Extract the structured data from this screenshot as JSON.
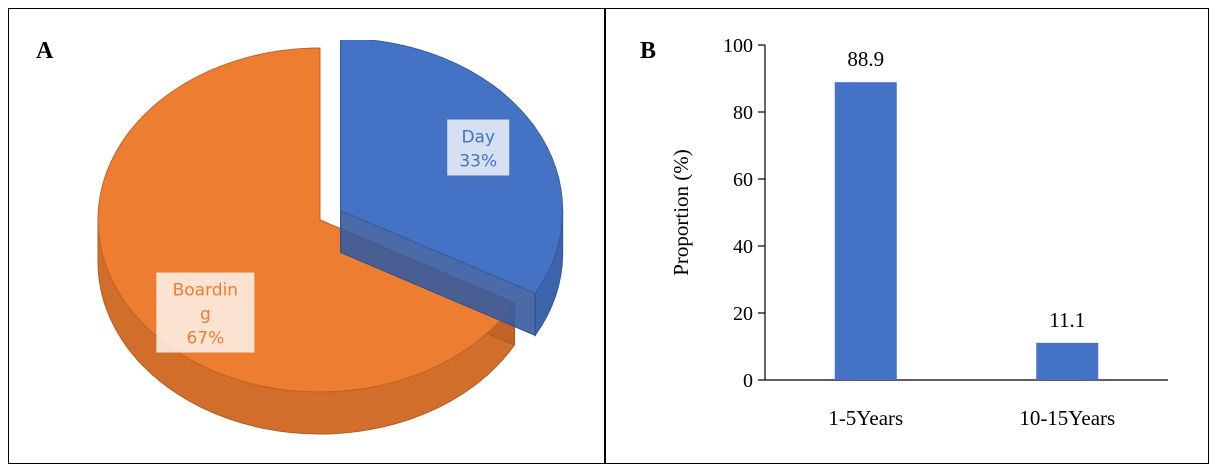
{
  "panels": {
    "a_label": "A",
    "b_label": "B"
  },
  "chart_data": [
    {
      "type": "pie",
      "labels": [
        "Day",
        "Boarding"
      ],
      "values": [
        33,
        67
      ],
      "display_labels": [
        [
          "Day",
          "33%"
        ],
        [
          "Boardin",
          "g",
          "67%"
        ]
      ],
      "colors": [
        "#4472C4",
        "#ED7D31"
      ],
      "style": "3d-exploded"
    },
    {
      "type": "bar",
      "categories": [
        "1-5Years",
        "10-15Years"
      ],
      "values": [
        88.9,
        11.1
      ],
      "value_labels": [
        "88.9",
        "11.1"
      ],
      "ylabel": "Proportion (%)",
      "ylim": [
        0,
        100
      ],
      "yticks": [
        0,
        20,
        40,
        60,
        80,
        100
      ],
      "bar_color": "#4472C4",
      "grid": false
    }
  ]
}
